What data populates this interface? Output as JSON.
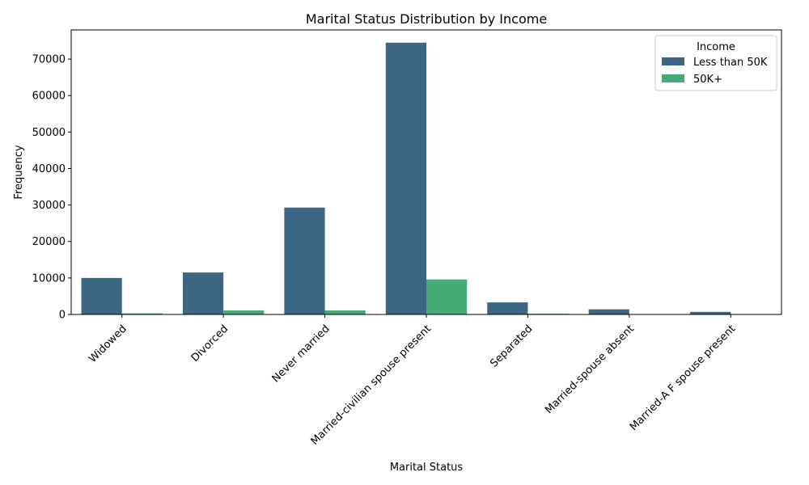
{
  "chart_data": {
    "type": "bar",
    "title": "Marital Status Distribution by Income",
    "xlabel": "Marital Status",
    "ylabel": "Frequency",
    "categories": [
      "Widowed",
      "Divorced",
      "Never married",
      "Married-civilian spouse present",
      "Separated",
      "Married-spouse absent",
      "Married-A F spouse present"
    ],
    "series": [
      {
        "name": "Less than 50K",
        "color": "#3b6684",
        "values": [
          10000,
          11500,
          29300,
          74500,
          3300,
          1400,
          700
        ]
      },
      {
        "name": "50K+",
        "color": "#45ab74",
        "values": [
          300,
          1100,
          1100,
          9600,
          200,
          100,
          50
        ]
      }
    ],
    "ylim": [
      0,
      78000
    ],
    "yticks": [
      0,
      10000,
      20000,
      30000,
      40000,
      50000,
      60000,
      70000
    ],
    "legend": {
      "title": "Income",
      "position": "top-right"
    },
    "grid": false
  }
}
